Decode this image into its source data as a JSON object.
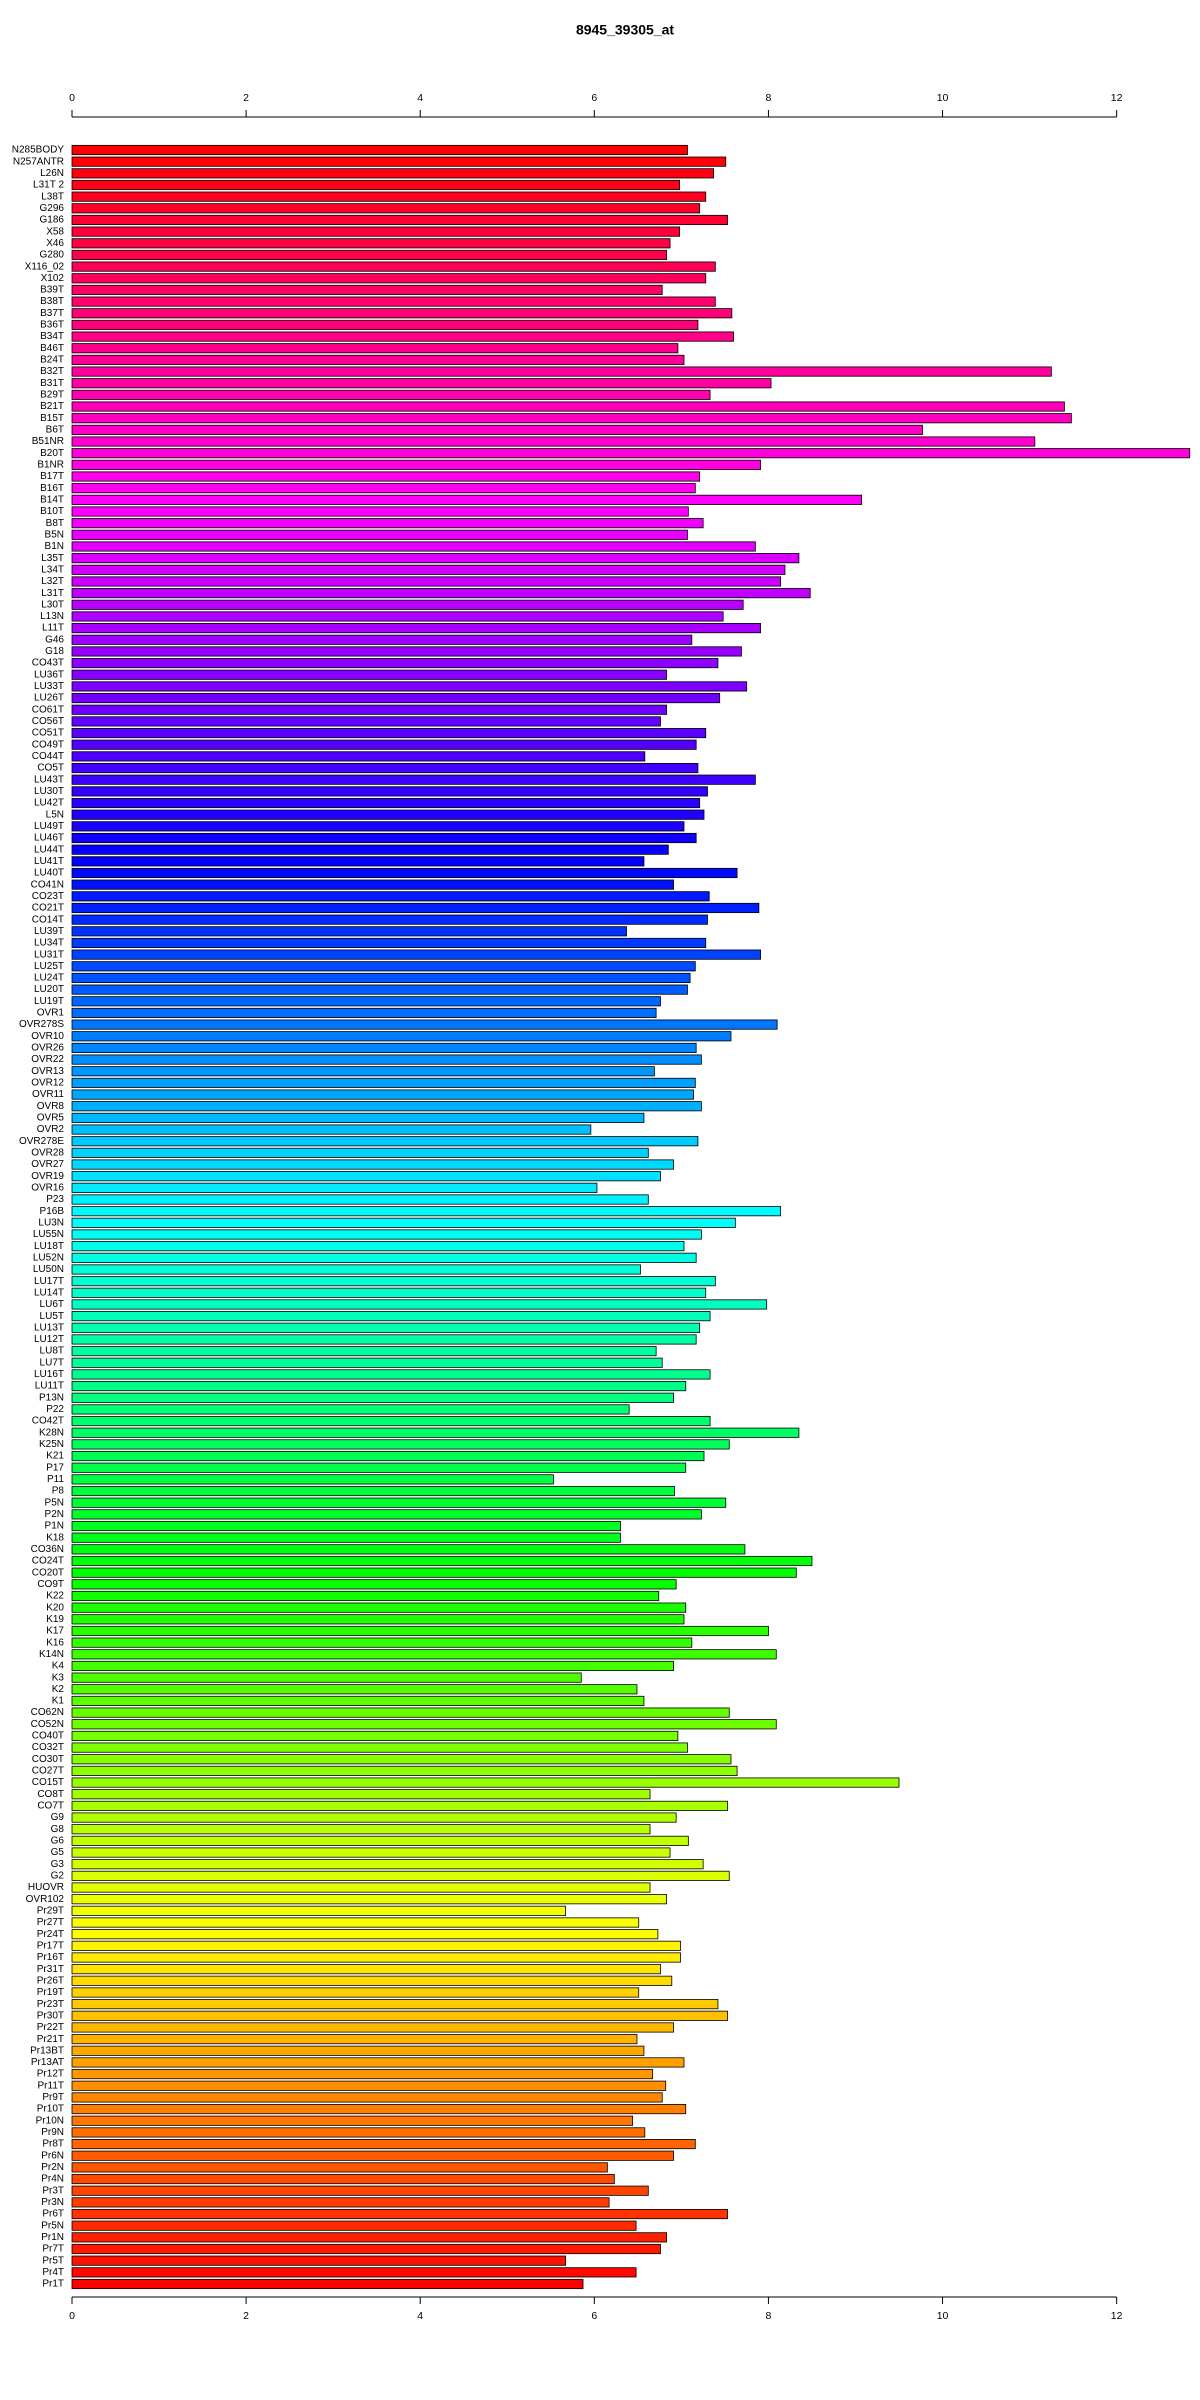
{
  "chart_data": {
    "type": "barh",
    "title": "8945_39305_at",
    "categories": [
      "N285BODY",
      "N257ANTR",
      "L26N",
      "L31T 2",
      "L38T",
      "G296",
      "G186",
      "X58",
      "X46",
      "G280",
      "X116_02",
      "X102",
      "B39T",
      "B38T",
      "B37T",
      "B36T",
      "B34T",
      "B46T",
      "B24T",
      "B32T",
      "B31T",
      "B29T",
      "B21T",
      "B15T",
      "B6T",
      "B51NR",
      "B20T",
      "B1NR",
      "B17T",
      "B16T",
      "B14T",
      "B10T",
      "B8T",
      "B5N",
      "B1N",
      "L35T",
      "L34T",
      "L32T",
      "L31T",
      "L30T",
      "L13N",
      "L11T",
      "G46",
      "G18",
      "CO43T",
      "LU36T",
      "LU33T",
      "LU26T",
      "CO61T",
      "CO56T",
      "CO51T",
      "CO49T",
      "CO44T",
      "CO5T",
      "LU43T",
      "LU30T",
      "LU42T",
      "L5N",
      "LU49T",
      "LU46T",
      "LU44T",
      "LU41T",
      "LU40T",
      "CO41N",
      "CO23T",
      "CO21T",
      "CO14T",
      "LU39T",
      "LU34T",
      "LU31T",
      "LU25T",
      "LU24T",
      "LU20T",
      "LU19T",
      "OVR1",
      "OVR278S",
      "OVR10",
      "OVR26",
      "OVR22",
      "OVR13",
      "OVR12",
      "OVR11",
      "OVR8",
      "OVR5",
      "OVR2",
      "OVR278E",
      "OVR28",
      "OVR27",
      "OVR19",
      "OVR16",
      "P23",
      "P16B",
      "LU3N",
      "LU55N",
      "LU18T",
      "LU52N",
      "LU50N",
      "LU17T",
      "LU14T",
      "LU6T",
      "LU5T",
      "LU13T",
      "LU12T",
      "LU8T",
      "LU7T",
      "LU16T",
      "LU11T",
      "P13N",
      "P22",
      "CO42T",
      "K28N",
      "K25N",
      "K21",
      "P17",
      "P11",
      "P8",
      "P5N",
      "P2N",
      "P1N",
      "K18",
      "CO36N",
      "CO24T",
      "CO20T",
      "CO9T",
      "K22",
      "K20",
      "K19",
      "K17",
      "K16",
      "K14N",
      "K4",
      "K3",
      "K2",
      "K1",
      "CO62N",
      "CO52N",
      "CO40T",
      "CO32T",
      "CO30T",
      "CO27T",
      "CO15T",
      "CO8T",
      "CO7T",
      "G9",
      "G8",
      "G6",
      "G5",
      "G3",
      "G2",
      "HUOVR",
      "OVR102",
      "Pr29T",
      "Pr27T",
      "Pr24T",
      "Pr17T",
      "Pr16T",
      "Pr31T",
      "Pr26T",
      "Pr19T",
      "Pr23T",
      "Pr30T",
      "Pr22T",
      "Pr21T",
      "Pr13BT",
      "Pr13AT",
      "Pr12T",
      "Pr11T",
      "Pr9T",
      "Pr10T",
      "Pr10N",
      "Pr9N",
      "Pr8T",
      "Pr6N",
      "Pr2N",
      "Pr4N",
      "Pr3T",
      "Pr3N",
      "Pr6T",
      "Pr5N",
      "Pr1N",
      "Pr7T",
      "Pr5T",
      "Pr4T",
      "Pr1T"
    ],
    "values": [
      7.07,
      7.51,
      7.37,
      6.98,
      7.28,
      7.21,
      7.53,
      6.98,
      6.87,
      6.83,
      7.39,
      7.28,
      6.78,
      7.39,
      7.58,
      7.19,
      7.6,
      6.96,
      7.03,
      11.25,
      8.03,
      7.33,
      11.4,
      11.48,
      9.77,
      11.06,
      12.84,
      7.91,
      7.21,
      7.16,
      9.07,
      7.08,
      7.25,
      7.07,
      7.85,
      8.35,
      8.19,
      8.14,
      8.48,
      7.71,
      7.48,
      7.91,
      7.12,
      7.69,
      7.42,
      6.83,
      7.75,
      7.44,
      6.83,
      6.76,
      7.28,
      7.17,
      6.58,
      7.19,
      7.85,
      7.3,
      7.21,
      7.26,
      7.03,
      7.17,
      6.85,
      6.57,
      7.64,
      6.91,
      7.32,
      7.89,
      7.3,
      6.37,
      7.28,
      7.91,
      7.16,
      7.1,
      7.07,
      6.76,
      6.71,
      8.1,
      7.57,
      7.17,
      7.23,
      6.69,
      7.16,
      7.14,
      7.23,
      6.57,
      5.96,
      7.19,
      6.62,
      6.91,
      6.76,
      6.03,
      6.62,
      8.14,
      7.62,
      7.23,
      7.03,
      7.17,
      6.53,
      7.39,
      7.28,
      7.98,
      7.33,
      7.21,
      7.17,
      6.71,
      6.78,
      7.33,
      7.05,
      6.91,
      6.4,
      7.33,
      8.35,
      7.55,
      7.26,
      7.05,
      5.53,
      6.92,
      7.51,
      7.23,
      6.3,
      6.3,
      7.73,
      8.5,
      8.32,
      6.94,
      6.74,
      7.05,
      7.03,
      8.0,
      7.12,
      8.09,
      6.91,
      5.85,
      6.49,
      6.57,
      7.55,
      8.09,
      6.96,
      7.07,
      7.57,
      7.64,
      9.5,
      6.64,
      7.53,
      6.94,
      6.64,
      7.08,
      6.87,
      7.25,
      7.55,
      6.64,
      6.83,
      5.67,
      6.51,
      6.73,
      6.99,
      6.99,
      6.76,
      6.89,
      6.51,
      7.42,
      7.53,
      6.91,
      6.49,
      6.57,
      7.03,
      6.67,
      6.82,
      6.78,
      7.05,
      6.44,
      6.58,
      7.16,
      6.91,
      6.15,
      6.23,
      6.62,
      6.17,
      7.53,
      6.48,
      6.83,
      6.76,
      5.67,
      6.48,
      5.87
    ],
    "colormap": "rainbow",
    "xlim": [
      0,
      12.9
    ],
    "xticks": [
      0,
      2,
      4,
      6,
      8,
      10,
      12
    ]
  }
}
